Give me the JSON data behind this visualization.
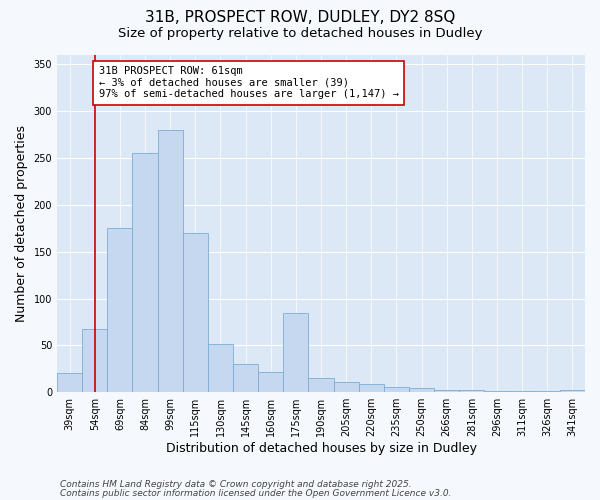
{
  "title_line1": "31B, PROSPECT ROW, DUDLEY, DY2 8SQ",
  "title_line2": "Size of property relative to detached houses in Dudley",
  "xlabel": "Distribution of detached houses by size in Dudley",
  "ylabel": "Number of detached properties",
  "categories": [
    "39sqm",
    "54sqm",
    "69sqm",
    "84sqm",
    "99sqm",
    "115sqm",
    "130sqm",
    "145sqm",
    "160sqm",
    "175sqm",
    "190sqm",
    "205sqm",
    "220sqm",
    "235sqm",
    "250sqm",
    "266sqm",
    "281sqm",
    "296sqm",
    "311sqm",
    "326sqm",
    "341sqm"
  ],
  "values": [
    20,
    68,
    175,
    255,
    280,
    170,
    52,
    30,
    22,
    85,
    15,
    11,
    9,
    6,
    5,
    2,
    2,
    1,
    1,
    1,
    2
  ],
  "bar_color": "#c5d8ef",
  "bar_edge_color": "#7aadd4",
  "vline_x": 1.0,
  "vline_color": "#cc0000",
  "annotation_text": "31B PROSPECT ROW: 61sqm\n← 3% of detached houses are smaller (39)\n97% of semi-detached houses are larger (1,147) →",
  "annotation_box_color": "#ffffff",
  "annotation_box_edge_color": "#cc0000",
  "ylim": [
    0,
    360
  ],
  "yticks": [
    0,
    50,
    100,
    150,
    200,
    250,
    300,
    350
  ],
  "background_color": "#dce8f5",
  "fig_background_color": "#f5f8fc",
  "footer_line1": "Contains HM Land Registry data © Crown copyright and database right 2025.",
  "footer_line2": "Contains public sector information licensed under the Open Government Licence v3.0.",
  "title_fontsize": 11,
  "subtitle_fontsize": 9.5,
  "axis_label_fontsize": 9,
  "tick_fontsize": 7,
  "annotation_fontsize": 7.5,
  "footer_fontsize": 6.5
}
